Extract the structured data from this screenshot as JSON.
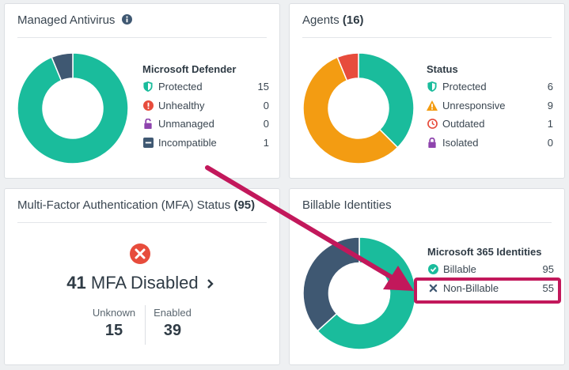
{
  "colors": {
    "teal": "#1abc9c",
    "navy": "#3f5872",
    "orange": "#f39c12",
    "red": "#e74c3c",
    "purple": "#8e44ad",
    "annotation": "#c2185b"
  },
  "antivirus": {
    "title": "Managed Antivirus",
    "title_icon": "info-icon",
    "legend_title": "Microsoft Defender",
    "items": [
      {
        "label": "Protected",
        "value": "15",
        "icon": "shield-icon",
        "color": "#1abc9c"
      },
      {
        "label": "Unhealthy",
        "value": "0",
        "icon": "exclamation-circle-icon",
        "color": "#e74c3c"
      },
      {
        "label": "Unmanaged",
        "value": "0",
        "icon": "unlock-icon",
        "color": "#8e44ad"
      },
      {
        "label": "Incompatible",
        "value": "1",
        "icon": "minus-square-icon",
        "color": "#3f5872"
      }
    ]
  },
  "agents": {
    "title": "Agents",
    "count": "(16)",
    "legend_title": "Status",
    "items": [
      {
        "label": "Protected",
        "value": "6",
        "icon": "shield-icon",
        "color": "#1abc9c"
      },
      {
        "label": "Unresponsive",
        "value": "9",
        "icon": "warning-icon",
        "color": "#f39c12"
      },
      {
        "label": "Outdated",
        "value": "1",
        "icon": "clock-icon",
        "color": "#e74c3c"
      },
      {
        "label": "Isolated",
        "value": "0",
        "icon": "lock-icon",
        "color": "#8e44ad"
      }
    ]
  },
  "mfa": {
    "title": "Multi-Factor Authentication (MFA) Status",
    "count": "(95)",
    "disabled_count": "41",
    "disabled_label": "MFA Disabled",
    "unknown_label": "Unknown",
    "unknown_value": "15",
    "enabled_label": "Enabled",
    "enabled_value": "39"
  },
  "billable": {
    "title": "Billable Identities",
    "legend_title": "Microsoft 365 Identities",
    "items": [
      {
        "label": "Billable",
        "value": "95",
        "icon": "check-circle-icon",
        "color": "#1abc9c"
      },
      {
        "label": "Non-Billable",
        "value": "55",
        "icon": "x-icon",
        "color": "#3f5872"
      }
    ]
  }
}
